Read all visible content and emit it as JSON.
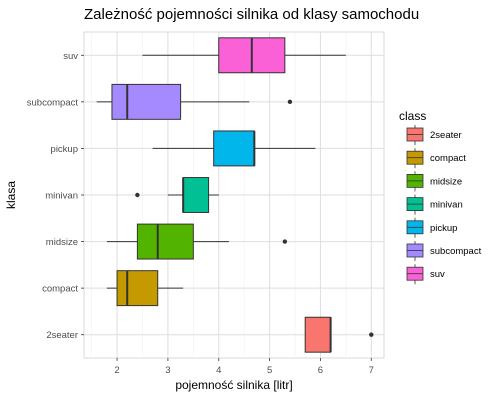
{
  "chart_data": {
    "type": "boxplot",
    "orientation": "horizontal",
    "title": "Zależność pojemności silnika od klasy samochodu",
    "xlabel": "pojemność silnika [litr]",
    "ylabel": "klasa",
    "xlim": [
      1.35,
      7.25
    ],
    "x_ticks": [
      "2",
      "3",
      "4",
      "5",
      "6",
      "7"
    ],
    "x_tick_values": [
      2,
      3,
      4,
      5,
      6,
      7
    ],
    "grid": true,
    "categories": [
      "2seater",
      "compact",
      "midsize",
      "minivan",
      "pickup",
      "subcompact",
      "suv"
    ],
    "boxes": [
      {
        "category": "2seater",
        "min": 5.7,
        "q1": 5.7,
        "median": 6.2,
        "q3": 6.2,
        "max": 6.2,
        "outliers": [
          7.0
        ],
        "color": "#F8766D"
      },
      {
        "category": "compact",
        "min": 1.8,
        "q1": 2.0,
        "median": 2.2,
        "q3": 2.8,
        "max": 3.3,
        "outliers": [],
        "color": "#C49A00"
      },
      {
        "category": "midsize",
        "min": 1.8,
        "q1": 2.4,
        "median": 2.8,
        "q3": 3.5,
        "max": 4.2,
        "outliers": [
          5.3
        ],
        "color": "#53B400"
      },
      {
        "category": "minivan",
        "min": 3.0,
        "q1": 3.3,
        "median": 3.3,
        "q3": 3.8,
        "max": 4.0,
        "outliers": [
          2.4
        ],
        "color": "#00C094"
      },
      {
        "category": "pickup",
        "min": 2.7,
        "q1": 3.9,
        "median": 4.7,
        "q3": 4.7,
        "max": 5.9,
        "outliers": [],
        "color": "#00B6EB"
      },
      {
        "category": "subcompact",
        "min": 1.6,
        "q1": 1.9,
        "median": 2.2,
        "q3": 3.25,
        "max": 4.6,
        "outliers": [
          5.4
        ],
        "color": "#A58AFF"
      },
      {
        "category": "suv",
        "min": 2.5,
        "q1": 4.0,
        "median": 4.65,
        "q3": 5.3,
        "max": 6.5,
        "outliers": [],
        "color": "#FB61D7"
      }
    ],
    "legend": {
      "title": "class",
      "placement": "right",
      "items": [
        "2seater",
        "compact",
        "midsize",
        "minivan",
        "pickup",
        "subcompact",
        "suv"
      ]
    }
  }
}
